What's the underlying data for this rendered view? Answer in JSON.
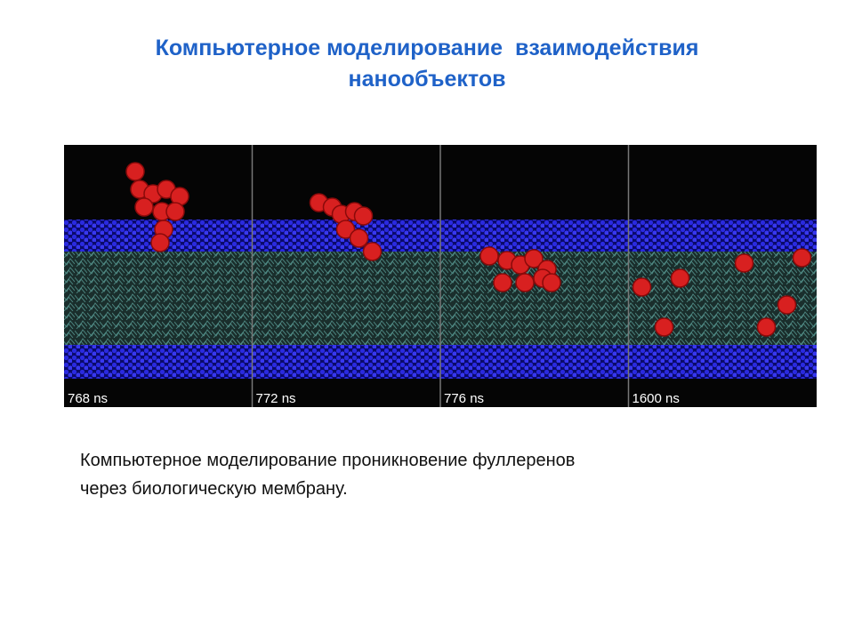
{
  "title": [
    "Компьютерное моделирование  взаимодействия",
    "нанообъектов"
  ],
  "panels": [
    {
      "label": "768 ns"
    },
    {
      "label": "772 ns"
    },
    {
      "label": "776 ns"
    },
    {
      "label": "1600 ns"
    }
  ],
  "caption": [
    "Компьютерное моделирование проникновение фуллеренов",
    "через биологическую мембрану."
  ]
}
